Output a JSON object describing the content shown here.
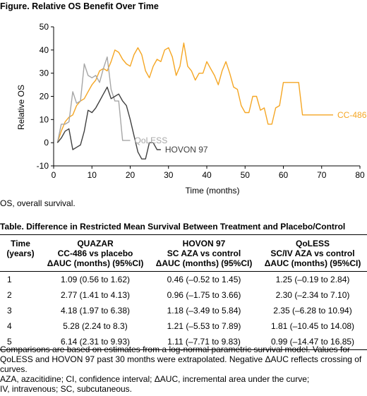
{
  "figure": {
    "title": "Figure. Relative OS Benefit Over Time",
    "footnote": "OS, overall survival."
  },
  "chart_data": {
    "type": "line",
    "title": "Figure. Relative OS Benefit Over Time",
    "xlabel": "Time (months)",
    "ylabel": "Relative OS",
    "xlim": [
      0,
      80
    ],
    "ylim": [
      -10,
      50
    ],
    "xticks": [
      0,
      10,
      20,
      30,
      40,
      50,
      60,
      70,
      80
    ],
    "yticks": [
      -10,
      0,
      10,
      20,
      30,
      40,
      50
    ],
    "grid": false,
    "legend": "inline labels at line ends",
    "series": [
      {
        "name": "CC-486",
        "color": "#f5a623",
        "x": [
          1,
          2,
          3,
          4,
          5,
          6,
          7,
          8,
          9,
          10,
          11,
          12,
          13,
          14,
          15,
          16,
          17,
          18,
          19,
          20,
          21,
          22,
          23,
          24,
          25,
          26,
          27,
          28,
          29,
          30,
          31,
          32,
          33,
          34,
          35,
          36,
          37,
          38,
          39,
          40,
          41,
          42,
          43,
          44,
          45,
          46,
          47,
          48,
          49,
          50,
          51,
          52,
          53,
          54,
          55,
          56,
          57,
          58,
          59,
          60,
          61,
          62,
          63,
          64,
          65,
          66,
          67,
          68,
          69,
          70,
          71,
          72,
          73
        ],
        "values": [
          0,
          5,
          9,
          11,
          12,
          16,
          18,
          19,
          22,
          25,
          27,
          31,
          32,
          31,
          35,
          40,
          39,
          36,
          34,
          33,
          38,
          41,
          38,
          31,
          28,
          33,
          36,
          35,
          40,
          41,
          37,
          29,
          33,
          43,
          33,
          31,
          27,
          30,
          30,
          35,
          32,
          29,
          25,
          31,
          35,
          30,
          24,
          23,
          16,
          13,
          13,
          20,
          20,
          14,
          15,
          8,
          8,
          15,
          16,
          26,
          26,
          26,
          26,
          26,
          12,
          12,
          12,
          12,
          12,
          12,
          12,
          12,
          12
        ]
      },
      {
        "name": "QoLESS",
        "color": "#a6a6a6",
        "x": [
          1,
          2,
          3,
          4,
          5,
          6,
          7,
          8,
          9,
          10,
          11,
          12,
          13,
          14,
          15,
          16,
          17,
          18,
          19,
          20
        ],
        "values": [
          0,
          8,
          8,
          9,
          22,
          17,
          18,
          34,
          29,
          28,
          29,
          26,
          32,
          37,
          23,
          18,
          18,
          1,
          1,
          1
        ]
      },
      {
        "name": "HOVON 97",
        "color": "#404040",
        "x": [
          1,
          2,
          3,
          4,
          5,
          6,
          7,
          8,
          9,
          10,
          11,
          12,
          13,
          14,
          15,
          16,
          17,
          18,
          19,
          20,
          21,
          22,
          23,
          24,
          25,
          26,
          27,
          28
        ],
        "values": [
          0,
          2,
          5,
          6,
          -3,
          -2,
          -1,
          5,
          14,
          13,
          15,
          18,
          21,
          24,
          19,
          20,
          21,
          18,
          16,
          10,
          3,
          -4,
          -7,
          -7,
          0,
          0,
          -3,
          -3
        ]
      }
    ]
  },
  "table": {
    "title": "Table. Difference in Restricted Mean Survival Between Treatment and Placebo/Control",
    "headers": [
      [
        "Time",
        "(years)",
        ""
      ],
      [
        "QUAZAR",
        "CC-486 vs placebo",
        "ΔAUC (months) (95%CI)"
      ],
      [
        "HOVON 97",
        "SC AZA vs control",
        "ΔAUC (months) (95%CI)"
      ],
      [
        "QoLESS",
        "SC/IV AZA vs control",
        "ΔAUC (months) (95%CI)"
      ]
    ],
    "rows": [
      [
        "1",
        "1.09 (0.56 to 1.62)",
        "0.46 (–0.52 to 1.45)",
        "1.25 (–0.19 to 2.84)"
      ],
      [
        "2",
        "2.77 (1.41 to 4.13)",
        "0.96 (–1.75 to 3.66)",
        "2.30 (–2.34 to 7.10)"
      ],
      [
        "3",
        "4.18 (1.97 to 6.38)",
        "1.18 (–3.49 to 5.84)",
        "2.35 (–6.28 to 10.94)"
      ],
      [
        "4",
        "5.28 (2.24 to 8.3)",
        "1.21 (–5.53 to 7.89)",
        "1.81 (–10.45 to 14.08)"
      ],
      [
        "5",
        "6.14 (2.31 to 9.93)",
        "1.11 (–7.71 to 9.83)",
        "0.99 (–14.47 to 16.85)"
      ]
    ],
    "notes": [
      "Comparisons are based on estimates from a log-normal parametric survival model. Values for QoLESS and HOVON 97 past 30 months were extrapolated. Negative ΔAUC reflects crossing of curves.",
      "AZA, azacitidine; CI, confidence interval; ΔAUC, incremental area under the curve;",
      "IV, intravenous; SC, subcutaneous."
    ]
  }
}
